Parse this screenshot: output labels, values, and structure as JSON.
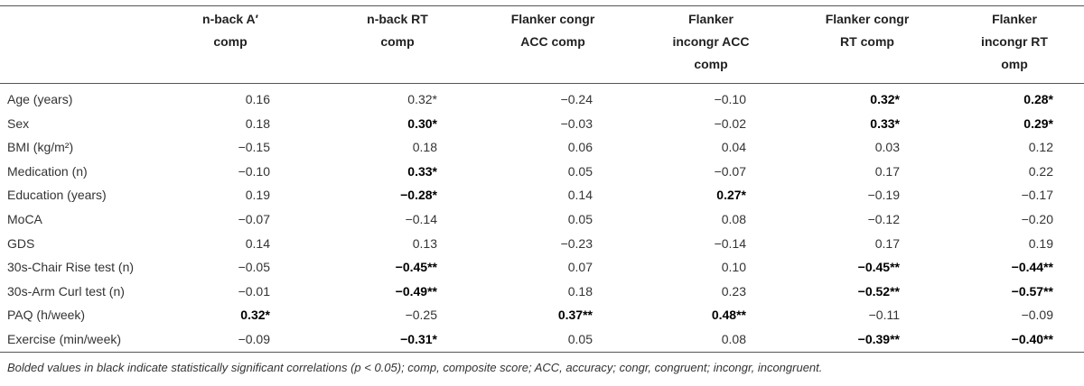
{
  "table": {
    "columns": [
      [
        "n-back A′",
        "comp"
      ],
      [
        "n-back RT",
        "comp"
      ],
      [
        "Flanker congr",
        "ACC comp"
      ],
      [
        "Flanker",
        "incongr ACC",
        "comp"
      ],
      [
        "Flanker congr",
        "RT comp"
      ],
      [
        "Flanker",
        "incongr RT",
        "omp"
      ]
    ],
    "rows": [
      {
        "label": "Age (years)",
        "cells": [
          "0.16",
          "0.32*",
          "−0.24",
          "−0.10",
          "0.32*",
          "0.28*"
        ],
        "bold": [
          false,
          false,
          false,
          false,
          true,
          true
        ]
      },
      {
        "label": "Sex",
        "cells": [
          "0.18",
          "0.30*",
          "−0.03",
          "−0.02",
          "0.33*",
          "0.29*"
        ],
        "bold": [
          false,
          true,
          false,
          false,
          true,
          true
        ]
      },
      {
        "label": "BMI (kg/m²)",
        "cells": [
          "−0.15",
          "0.18",
          "0.06",
          "0.04",
          "0.03",
          "0.12"
        ],
        "bold": [
          false,
          false,
          false,
          false,
          false,
          false
        ]
      },
      {
        "label": "Medication (n)",
        "cells": [
          "−0.10",
          "0.33*",
          "0.05",
          "−0.07",
          "0.17",
          "0.22"
        ],
        "bold": [
          false,
          true,
          false,
          false,
          false,
          false
        ]
      },
      {
        "label": "Education (years)",
        "cells": [
          "0.19",
          "−0.28*",
          "0.14",
          "0.27*",
          "−0.19",
          "−0.17"
        ],
        "bold": [
          false,
          true,
          false,
          true,
          false,
          false
        ]
      },
      {
        "label": "MoCA",
        "cells": [
          "−0.07",
          "−0.14",
          "0.05",
          "0.08",
          "−0.12",
          "−0.20"
        ],
        "bold": [
          false,
          false,
          false,
          false,
          false,
          false
        ]
      },
      {
        "label": "GDS",
        "cells": [
          "0.14",
          "0.13",
          "−0.23",
          "−0.14",
          "0.17",
          "0.19"
        ],
        "bold": [
          false,
          false,
          false,
          false,
          false,
          false
        ]
      },
      {
        "label": "30s-Chair Rise test (n)",
        "cells": [
          "−0.05",
          "−0.45**",
          "0.07",
          "0.10",
          "−0.45**",
          "−0.44**"
        ],
        "bold": [
          false,
          true,
          false,
          false,
          true,
          true
        ]
      },
      {
        "label": "30s-Arm Curl test (n)",
        "cells": [
          "−0.01",
          "−0.49**",
          "0.18",
          "0.23",
          "−0.52**",
          "−0.57**"
        ],
        "bold": [
          false,
          true,
          false,
          false,
          true,
          true
        ]
      },
      {
        "label": "PAQ (h/week)",
        "cells": [
          "0.32*",
          "−0.25",
          "0.37**",
          "0.48**",
          "−0.11",
          "−0.09"
        ],
        "bold": [
          true,
          false,
          true,
          true,
          false,
          false
        ]
      },
      {
        "label": "Exercise (min/week)",
        "cells": [
          "−0.09",
          "−0.31*",
          "0.05",
          "0.08",
          "−0.39**",
          "−0.40**"
        ],
        "bold": [
          false,
          true,
          false,
          false,
          true,
          true
        ]
      }
    ],
    "footnote": "Bolded values in black indicate statistically significant correlations (p < 0.05); comp, composite score; ACC, accuracy; congr, congruent; incongr, incongruent."
  }
}
